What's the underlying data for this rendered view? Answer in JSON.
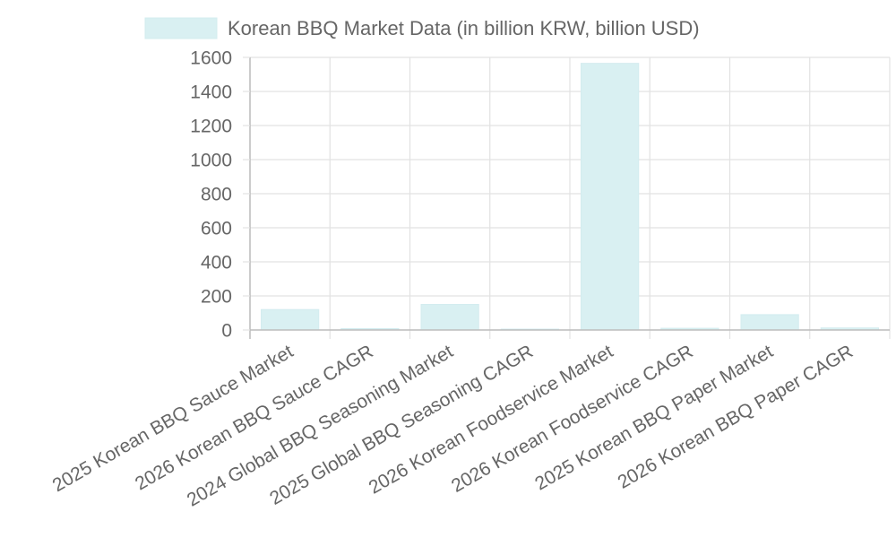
{
  "chart_data": {
    "type": "bar",
    "categories": [
      "2025 Korean BBQ Sauce Market",
      "2026 Korean BBQ Sauce CAGR",
      "2024 Global BBQ Seasoning Market",
      "2025 Global BBQ Seasoning CAGR",
      "2026 Korean Foodservice Market",
      "2026 Korean Foodservice CAGR",
      "2025 Korean BBQ Paper Market",
      "2026 Korean BBQ Paper CAGR"
    ],
    "series": [
      {
        "name": "Korean BBQ Market Data (in billion KRW, billion USD)",
        "values": [
          120,
          8,
          150,
          5,
          1565,
          10,
          90,
          12
        ]
      }
    ],
    "yticks": [
      0,
      200,
      400,
      600,
      800,
      1000,
      1200,
      1400,
      1600
    ],
    "ylim": [
      0,
      1600
    ],
    "grid": true,
    "legend_position": "top",
    "colors": {
      "bar_fill": "#d9f0f2",
      "bar_stroke": "#d3ecef",
      "grid": "#e2e2e2",
      "axis": "#bdbdbd",
      "text": "#666666"
    }
  }
}
